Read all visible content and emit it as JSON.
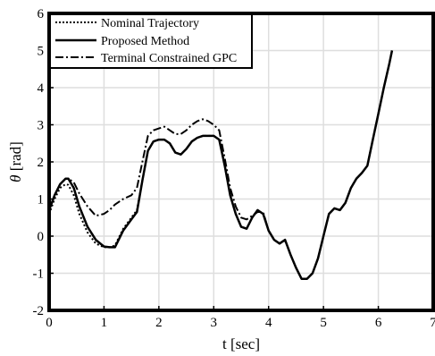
{
  "chart_data": {
    "type": "line",
    "xlabel": "t [sec]",
    "ylabel_symbol": "θ",
    "ylabel_unit": " [rad]",
    "xlim": [
      0,
      7
    ],
    "ylim": [
      -2,
      6
    ],
    "xticks": [
      0,
      1,
      2,
      3,
      4,
      5,
      6,
      7
    ],
    "yticks": [
      -2,
      -1,
      0,
      1,
      2,
      3,
      4,
      5,
      6
    ],
    "grid": true,
    "legend_position": "top-left",
    "series": [
      {
        "name": "Nominal Trajectory",
        "style": "dotted",
        "color": "#000000",
        "x": [
          0,
          0.1,
          0.2,
          0.3,
          0.35,
          0.45,
          0.55,
          0.7,
          0.85,
          1.0,
          1.1,
          1.2,
          1.35,
          1.5,
          1.6,
          1.7,
          1.8,
          1.9,
          2.0,
          2.1,
          2.2,
          2.3,
          2.4,
          2.5,
          2.6,
          2.7,
          2.8,
          2.9,
          3.0,
          3.1,
          3.2,
          3.3,
          3.4,
          3.5,
          3.6,
          3.7,
          3.8,
          3.9,
          4.0,
          4.1,
          4.2,
          4.3,
          4.4,
          4.5,
          4.6,
          4.7,
          4.8,
          4.9,
          5.0,
          5.1,
          5.2,
          5.3,
          5.4,
          5.5,
          5.6,
          5.7,
          5.8,
          5.9,
          6.0,
          6.1,
          6.2,
          6.25
        ],
        "y": [
          0.6,
          1.0,
          1.3,
          1.4,
          1.38,
          1.1,
          0.6,
          0.1,
          -0.2,
          -0.3,
          -0.3,
          -0.25,
          0.2,
          0.5,
          0.7,
          1.5,
          2.3,
          2.55,
          2.6,
          2.6,
          2.5,
          2.25,
          2.2,
          2.35,
          2.55,
          2.65,
          2.7,
          2.7,
          2.7,
          2.6,
          1.9,
          1.1,
          0.6,
          0.25,
          0.2,
          0.5,
          0.7,
          0.6,
          0.15,
          -0.1,
          -0.2,
          -0.1,
          -0.5,
          -0.85,
          -1.15,
          -1.15,
          -1.0,
          -0.6,
          0.0,
          0.6,
          0.75,
          0.7,
          0.9,
          1.3,
          1.55,
          1.7,
          1.9,
          2.6,
          3.3,
          4.0,
          4.65,
          5.0
        ]
      },
      {
        "name": "Proposed Method",
        "style": "solid",
        "color": "#000000",
        "x": [
          0,
          0.1,
          0.2,
          0.3,
          0.35,
          0.45,
          0.55,
          0.7,
          0.85,
          1.0,
          1.1,
          1.2,
          1.35,
          1.5,
          1.6,
          1.7,
          1.8,
          1.9,
          2.0,
          2.1,
          2.2,
          2.3,
          2.4,
          2.5,
          2.6,
          2.7,
          2.8,
          2.9,
          3.0,
          3.1,
          3.2,
          3.3,
          3.4,
          3.5,
          3.6,
          3.7,
          3.8,
          3.9,
          4.0,
          4.1,
          4.2,
          4.3,
          4.4,
          4.5,
          4.6,
          4.7,
          4.8,
          4.9,
          5.0,
          5.1,
          5.2,
          5.3,
          5.4,
          5.5,
          5.6,
          5.7,
          5.8,
          5.9,
          6.0,
          6.1,
          6.2,
          6.25
        ],
        "y": [
          0.7,
          1.1,
          1.4,
          1.55,
          1.55,
          1.3,
          0.8,
          0.25,
          -0.1,
          -0.28,
          -0.3,
          -0.3,
          0.15,
          0.45,
          0.65,
          1.5,
          2.3,
          2.55,
          2.6,
          2.6,
          2.5,
          2.25,
          2.2,
          2.35,
          2.55,
          2.65,
          2.7,
          2.7,
          2.7,
          2.6,
          1.9,
          1.1,
          0.6,
          0.25,
          0.2,
          0.5,
          0.7,
          0.6,
          0.15,
          -0.1,
          -0.2,
          -0.1,
          -0.5,
          -0.85,
          -1.15,
          -1.15,
          -1.0,
          -0.6,
          0.0,
          0.6,
          0.75,
          0.7,
          0.9,
          1.3,
          1.55,
          1.7,
          1.9,
          2.6,
          3.3,
          4.0,
          4.65,
          5.0
        ]
      },
      {
        "name": "Terminal Constrained GPC",
        "style": "dashdot",
        "color": "#000000",
        "x": [
          0,
          0.1,
          0.2,
          0.3,
          0.35,
          0.45,
          0.55,
          0.7,
          0.85,
          1.0,
          1.1,
          1.2,
          1.35,
          1.5,
          1.6,
          1.7,
          1.8,
          1.9,
          2.0,
          2.1,
          2.2,
          2.3,
          2.4,
          2.5,
          2.6,
          2.7,
          2.8,
          2.9,
          3.0,
          3.1,
          3.2,
          3.3,
          3.4,
          3.5,
          3.6,
          3.7,
          3.8,
          3.9,
          4.0,
          4.1,
          4.2,
          4.3,
          4.4,
          4.5,
          4.6,
          4.7,
          4.8,
          4.9,
          5.0,
          5.1,
          5.2,
          5.3,
          5.4,
          5.5,
          5.6,
          5.7,
          5.8,
          5.9,
          6.0,
          6.1,
          6.2,
          6.25
        ],
        "y": [
          0.7,
          1.1,
          1.4,
          1.55,
          1.55,
          1.45,
          1.15,
          0.8,
          0.55,
          0.6,
          0.7,
          0.85,
          1.0,
          1.1,
          1.3,
          2.0,
          2.7,
          2.85,
          2.9,
          2.95,
          2.85,
          2.75,
          2.75,
          2.85,
          3.0,
          3.1,
          3.15,
          3.1,
          3.0,
          2.85,
          2.1,
          1.3,
          0.8,
          0.5,
          0.45,
          0.55,
          0.65,
          0.65,
          0.15,
          -0.1,
          -0.2,
          -0.1,
          -0.5,
          -0.85,
          -1.15,
          -1.15,
          -1.0,
          -0.6,
          0.0,
          0.6,
          0.75,
          0.7,
          0.9,
          1.3,
          1.55,
          1.7,
          1.9,
          2.6,
          3.3,
          4.0,
          4.65,
          5.0
        ]
      }
    ]
  }
}
